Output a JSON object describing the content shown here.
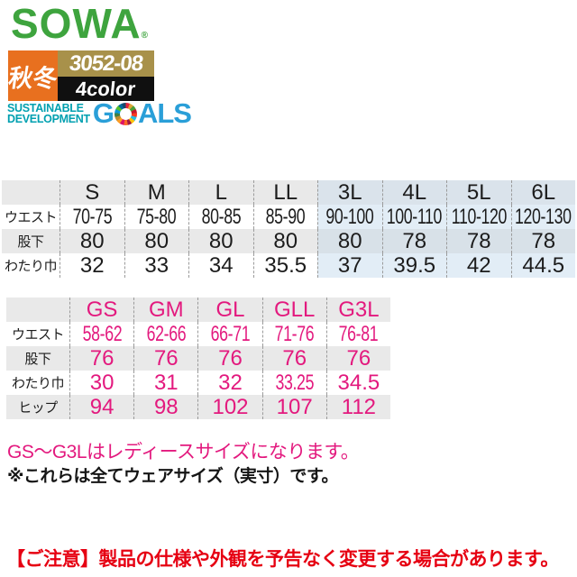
{
  "brand": {
    "logo": "SOWA",
    "registered": "®"
  },
  "badges": {
    "season": "秋冬",
    "product_code": "3052-08",
    "color_count": "4color"
  },
  "sdg": {
    "line1": "SUSTAINABLE",
    "line2": "DEVELOPMENT",
    "goals_g": "G",
    "goals_rest": "ALS",
    "wheel_icon": "sdg-color-wheel"
  },
  "size_table_main": {
    "columns": [
      "S",
      "M",
      "L",
      "LL",
      "3L",
      "4L",
      "5L",
      "6L"
    ],
    "highlight_from": 4,
    "rows": [
      {
        "label": "ウエスト",
        "values": [
          "70-75",
          "75-80",
          "80-85",
          "85-90",
          "90-100",
          "100-110",
          "110-120",
          "120-130"
        ]
      },
      {
        "label": "股下",
        "values": [
          "80",
          "80",
          "80",
          "80",
          "80",
          "78",
          "78",
          "78"
        ]
      },
      {
        "label": "わたり巾",
        "values": [
          "32",
          "33",
          "34",
          "35.5",
          "37",
          "39.5",
          "42",
          "44.5"
        ]
      }
    ]
  },
  "size_table_ladies": {
    "columns": [
      "GS",
      "GM",
      "GL",
      "GLL",
      "G3L"
    ],
    "highlight_from": -1,
    "rows": [
      {
        "label": "ウエスト",
        "values": [
          "58-62",
          "62-66",
          "66-71",
          "71-76",
          "76-81"
        ]
      },
      {
        "label": "股下",
        "values": [
          "76",
          "76",
          "76",
          "76",
          "76"
        ]
      },
      {
        "label": "わたり巾",
        "values": [
          "30",
          "31",
          "32",
          "33.25",
          "34.5"
        ]
      },
      {
        "label": "ヒップ",
        "values": [
          "94",
          "98",
          "102",
          "107",
          "112"
        ]
      }
    ]
  },
  "notes": {
    "ladies_note": "GS〜G3Lはレディースサイズになります。",
    "wear_note": "※これらは全てウェアサイズ（実寸）です。"
  },
  "caution": "【ご注意】製品の仕様や外観を予告なく変更する場合があります。",
  "colors": {
    "brand_green": "#3ea43e",
    "badge_orange": "#e8701f",
    "badge_gold": "#a8914a",
    "badge_black": "#101010",
    "pink": "#e3197e",
    "caution_red": "#e60012",
    "sdg_teal": "#00a0b0",
    "sdg_blue": "#2a9fd8",
    "row_grey": "#e9e9e9",
    "highlight_blue": "#e2edf6"
  }
}
